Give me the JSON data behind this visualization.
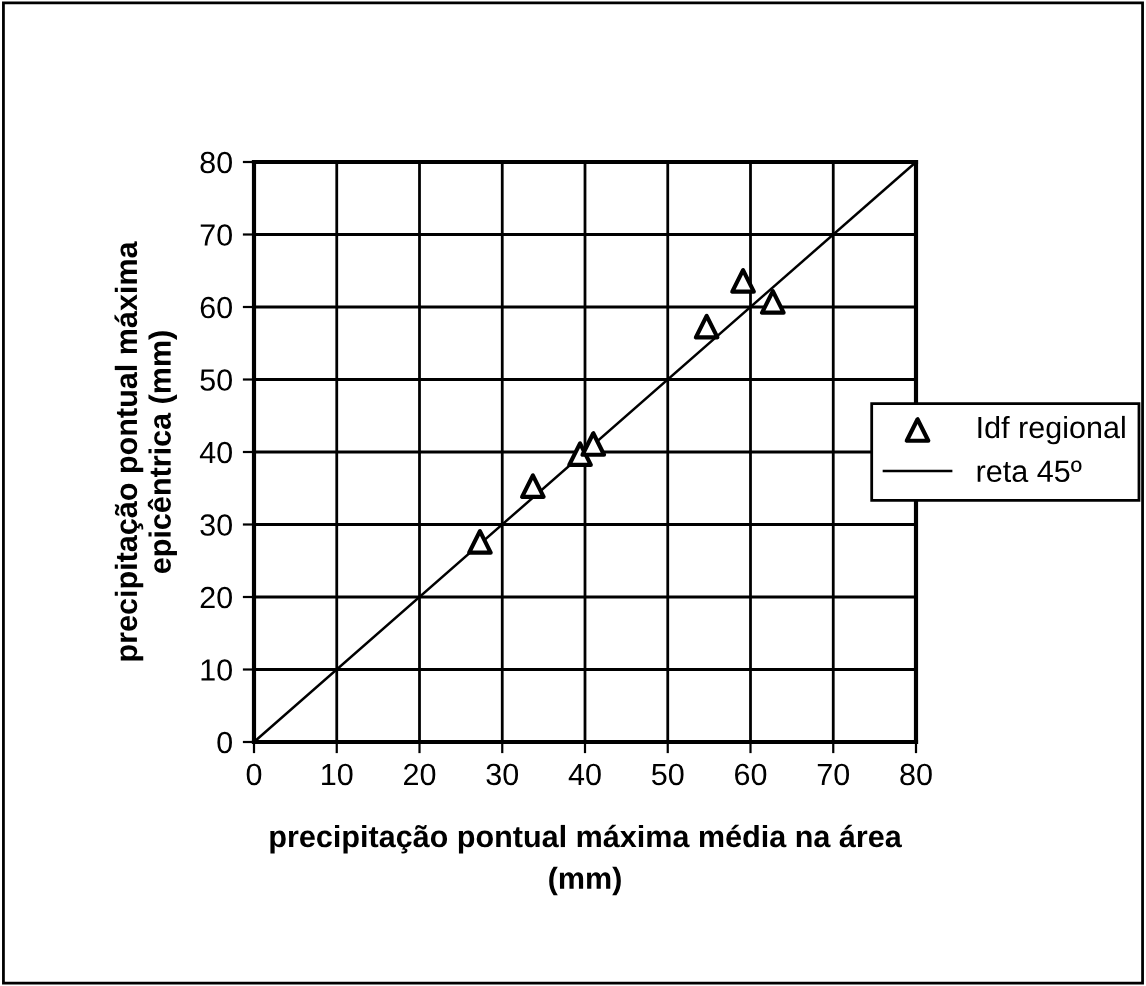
{
  "chart_data": {
    "type": "scatter",
    "xlabel": "precipitação pontual máxima média na área\n(mm)",
    "ylabel": "precipitação pontual máxima\nepicêntrica (mm)",
    "series": [
      {
        "name": "Idf regional",
        "color": "#000000",
        "marker": "triangle",
        "x": [
          27.3,
          33.7,
          39.4,
          41.0,
          54.7,
          59.1,
          62.7
        ],
        "values": [
          27.6,
          35.3,
          39.7,
          41.1,
          57.3,
          63.6,
          60.7
        ]
      },
      {
        "name": "reta 45º",
        "type": "line",
        "color": "#000000",
        "marker": "none",
        "line_style": "solid",
        "x": [
          0,
          80
        ],
        "values": [
          0,
          80
        ]
      }
    ],
    "xlim": [
      0,
      80
    ],
    "ylim": [
      0,
      80
    ],
    "xticks": [
      0,
      10,
      20,
      30,
      40,
      50,
      60,
      70,
      80
    ],
    "yticks": [
      0,
      10,
      20,
      30,
      40,
      50,
      60,
      70,
      80
    ],
    "grid": true,
    "legend": "right"
  }
}
